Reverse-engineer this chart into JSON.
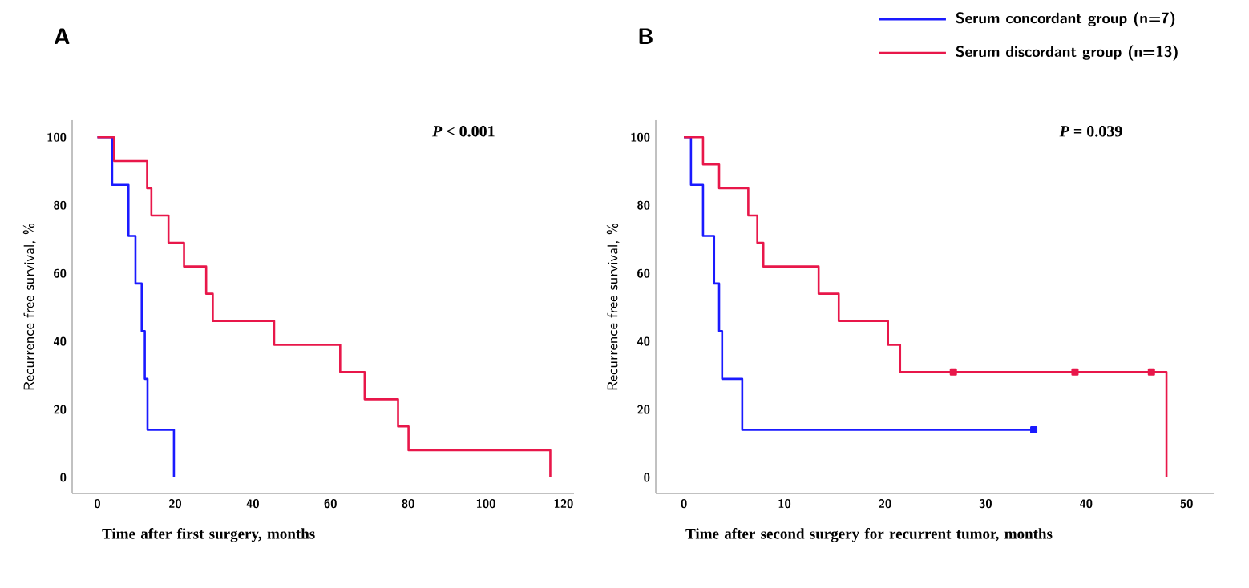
{
  "chart_data": [
    {
      "type": "step",
      "title": "A",
      "xlabel": "Time after first surgery, months",
      "ylabel": "Recurrence free survival, %",
      "annotations": [
        "*P* < 0.001"
      ],
      "xlim": [
        -6.5,
        122.7
      ],
      "ylim": [
        -4.7,
        105
      ],
      "xticks": [
        0,
        20,
        40,
        60,
        80,
        100,
        120
      ],
      "yticks": [
        0,
        20,
        40,
        60,
        80,
        100
      ],
      "series": [
        {
          "color": "#1a1aff",
          "x": [
            0,
            3.8,
            8,
            9.8,
            11.4,
            12.2,
            12.9,
            19.7
          ],
          "values": [
            100,
            86,
            71,
            57,
            43,
            29,
            14,
            0
          ]
        },
        {
          "color": "#e8174a",
          "x": [
            0,
            4.3,
            12.8,
            13.9,
            18.3,
            22.3,
            28,
            29.7,
            45.5,
            62.5,
            68.8,
            77.4,
            80.1,
            116.6
          ],
          "values": [
            100,
            93,
            85,
            77,
            69,
            62,
            54,
            46,
            39,
            31,
            23,
            15,
            8,
            0
          ]
        }
      ]
    },
    {
      "type": "step",
      "title": "B",
      "xlabel": "Time after second surgery for recurrent tumor, months",
      "ylabel": "Recurrence free survival, %",
      "annotations": [
        "*P* = 0.039"
      ],
      "xlim": [
        -2.8,
        52.7
      ],
      "ylim": [
        -4.7,
        105
      ],
      "xticks": [
        0,
        10,
        20,
        30,
        40,
        50
      ],
      "yticks": [
        0,
        20,
        40,
        60,
        80,
        100
      ],
      "legend": "top right",
      "series": [
        {
          "name": "Serum concordant group (n=7)",
          "color": "#1a1aff",
          "x": [
            0,
            0.7,
            1.9,
            3,
            3.5,
            3.8,
            5.8,
            34.8
          ],
          "values": [
            100,
            86,
            71,
            57,
            43,
            29,
            14,
            14
          ]
        },
        {
          "name": "Serum discordant group (n=13)",
          "color": "#e8174a",
          "x": [
            0,
            1.9,
            3.5,
            6.4,
            7.3,
            7.9,
            13.4,
            15.4,
            20.3,
            21.5,
            48,
            48
          ],
          "values": [
            100,
            92,
            85,
            77,
            69,
            62,
            54,
            46,
            39,
            31,
            31,
            0
          ]
        },
        {
          "type": "scatter",
          "marker": "square",
          "color": "#1a1aff",
          "x": [
            34.8
          ],
          "values": [
            14
          ]
        },
        {
          "type": "scatter",
          "marker": "square",
          "color": "#e8174a",
          "x": [
            26.8,
            38.9,
            46.5
          ],
          "values": [
            31,
            31,
            31
          ]
        }
      ]
    }
  ]
}
